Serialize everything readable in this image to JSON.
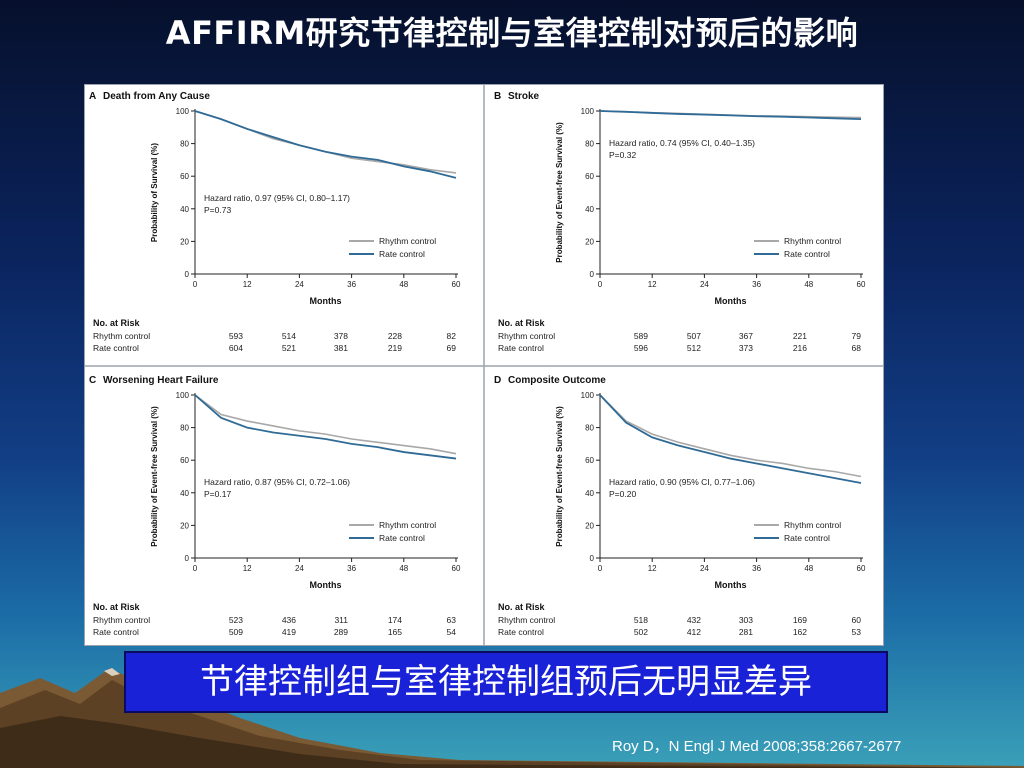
{
  "slide": {
    "title": "AFFIRM研究节律控制与室律控制对预后的影响",
    "conclusion": "节律控制组与室律控制组预后无明显差异",
    "citation": "Roy D，N Engl J Med 2008;358:2667-2677"
  },
  "colors": {
    "rhythm_control": "#a8a8a8",
    "rate_control": "#2f6b96"
  },
  "chart_data": [
    {
      "type": "line",
      "letter": "A",
      "title": "Death from Any Cause",
      "ylabel": "Probability of Survival (%)",
      "xlabel": "Months",
      "xlim": [
        0,
        60
      ],
      "ylim": [
        0,
        100
      ],
      "xticks": [
        0,
        12,
        24,
        36,
        48,
        60
      ],
      "yticks": [
        0,
        20,
        40,
        60,
        80,
        100
      ],
      "x": [
        0,
        6,
        12,
        18,
        24,
        30,
        36,
        42,
        48,
        54,
        60
      ],
      "series": [
        {
          "name": "Rhythm control",
          "values": [
            100,
            95,
            89,
            83,
            79,
            75,
            71,
            69,
            67,
            64,
            62
          ]
        },
        {
          "name": "Rate control",
          "values": [
            100,
            95,
            89,
            84,
            79,
            75,
            72,
            70,
            66,
            63,
            59
          ]
        }
      ],
      "annotation": [
        "Hazard ratio, 0.97 (95% CI, 0.80–1.17)",
        "P=0.73"
      ],
      "legend": [
        "Rhythm control",
        "Rate control"
      ],
      "risk": {
        "header": "No. at Risk",
        "rows": [
          {
            "label": "Rhythm control",
            "values": [
              "593",
              "514",
              "378",
              "228",
              "82"
            ]
          },
          {
            "label": "Rate control",
            "values": [
              "604",
              "521",
              "381",
              "219",
              "69"
            ]
          }
        ]
      }
    },
    {
      "type": "line",
      "letter": "B",
      "title": "Stroke",
      "ylabel": "Probability of Event-free Survival (%)",
      "xlabel": "Months",
      "xlim": [
        0,
        60
      ],
      "ylim": [
        0,
        100
      ],
      "xticks": [
        0,
        12,
        24,
        36,
        48,
        60
      ],
      "yticks": [
        0,
        20,
        40,
        60,
        80,
        100
      ],
      "x": [
        0,
        6,
        12,
        18,
        24,
        30,
        36,
        42,
        48,
        54,
        60
      ],
      "series": [
        {
          "name": "Rhythm control",
          "values": [
            100,
            99.5,
            99,
            98.5,
            98,
            97.5,
            97,
            96.8,
            96.5,
            96.2,
            96
          ]
        },
        {
          "name": "Rate control",
          "values": [
            100,
            99.5,
            98.8,
            98.2,
            97.8,
            97.3,
            96.8,
            96.5,
            96,
            95.5,
            95
          ]
        }
      ],
      "annotation": [
        "Hazard ratio, 0.74 (95% CI, 0.40–1.35)",
        "P=0.32"
      ],
      "legend": [
        "Rhythm control",
        "Rate control"
      ],
      "risk": {
        "header": "No. at Risk",
        "rows": [
          {
            "label": "Rhythm control",
            "values": [
              "589",
              "507",
              "367",
              "221",
              "79"
            ]
          },
          {
            "label": "Rate control",
            "values": [
              "596",
              "512",
              "373",
              "216",
              "68"
            ]
          }
        ]
      }
    },
    {
      "type": "line",
      "letter": "C",
      "title": "Worsening Heart Failure",
      "ylabel": "Probability of Event-free Survival (%)",
      "xlabel": "Months",
      "xlim": [
        0,
        60
      ],
      "ylim": [
        0,
        100
      ],
      "xticks": [
        0,
        12,
        24,
        36,
        48,
        60
      ],
      "yticks": [
        0,
        20,
        40,
        60,
        80,
        100
      ],
      "x": [
        0,
        6,
        12,
        18,
        24,
        30,
        36,
        42,
        48,
        54,
        60
      ],
      "series": [
        {
          "name": "Rhythm control",
          "values": [
            100,
            88,
            84,
            81,
            78,
            76,
            73,
            71,
            69,
            67,
            64
          ]
        },
        {
          "name": "Rate control",
          "values": [
            100,
            86,
            80,
            77,
            75,
            73,
            70,
            68,
            65,
            63,
            61
          ]
        }
      ],
      "annotation": [
        "Hazard ratio, 0.87 (95% CI, 0.72–1.06)",
        "P=0.17"
      ],
      "legend": [
        "Rhythm control",
        "Rate control"
      ],
      "risk": {
        "header": "No. at Risk",
        "rows": [
          {
            "label": "Rhythm control",
            "values": [
              "523",
              "436",
              "311",
              "174",
              "63"
            ]
          },
          {
            "label": "Rate control",
            "values": [
              "509",
              "419",
              "289",
              "165",
              "54"
            ]
          }
        ]
      }
    },
    {
      "type": "line",
      "letter": "D",
      "title": "Composite Outcome",
      "ylabel": "Probability of Event-free Survival (%)",
      "xlabel": "Months",
      "xlim": [
        0,
        60
      ],
      "ylim": [
        0,
        100
      ],
      "xticks": [
        0,
        12,
        24,
        36,
        48,
        60
      ],
      "yticks": [
        0,
        20,
        40,
        60,
        80,
        100
      ],
      "x": [
        0,
        6,
        12,
        18,
        24,
        30,
        36,
        42,
        48,
        54,
        60
      ],
      "series": [
        {
          "name": "Rhythm control",
          "values": [
            100,
            84,
            76,
            71,
            67,
            63,
            60,
            58,
            55,
            53,
            50
          ]
        },
        {
          "name": "Rate control",
          "values": [
            100,
            83,
            74,
            69,
            65,
            61,
            58,
            55,
            52,
            49,
            46
          ]
        }
      ],
      "annotation": [
        "Hazard ratio, 0.90 (95% CI, 0.77–1.06)",
        "P=0.20"
      ],
      "legend": [
        "Rhythm control",
        "Rate control"
      ],
      "risk": {
        "header": "No. at Risk",
        "rows": [
          {
            "label": "Rhythm control",
            "values": [
              "518",
              "432",
              "303",
              "169",
              "60"
            ]
          },
          {
            "label": "Rate control",
            "values": [
              "502",
              "412",
              "281",
              "162",
              "53"
            ]
          }
        ]
      }
    }
  ]
}
